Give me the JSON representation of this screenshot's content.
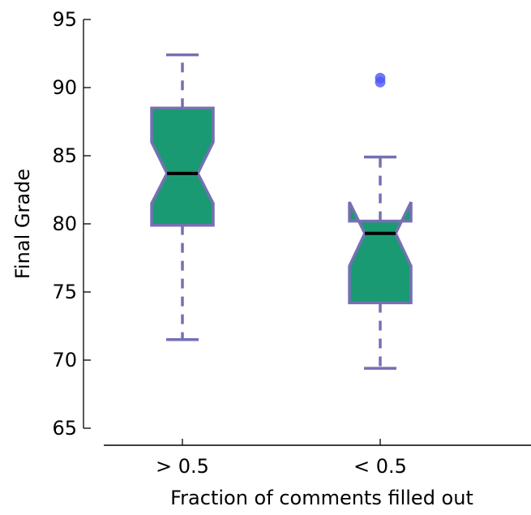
{
  "chart_data": {
    "type": "boxplot",
    "title": "",
    "xlabel": "Fraction of comments filled out",
    "ylabel": "Final Grade",
    "ylim": [
      65,
      95
    ],
    "yticks": [
      "65",
      "70",
      "75",
      "80",
      "85",
      "90",
      "95"
    ],
    "categories": [
      "> 0.5",
      "< 0.5"
    ],
    "boxes": [
      {
        "category": "> 0.5",
        "whisker_low": 71.5,
        "q1": 79.9,
        "notch_low": 81.5,
        "median": 83.7,
        "notch_high": 86.0,
        "q3": 88.5,
        "whisker_high": 92.4,
        "outliers": []
      },
      {
        "category": "< 0.5",
        "whisker_low": 69.4,
        "q1": 74.2,
        "notch_low": 76.9,
        "median": 79.3,
        "notch_high": 81.6,
        "q3": 80.2,
        "whisker_high": 84.9,
        "outliers": [
          90.4,
          90.7
        ]
      }
    ],
    "grid": false,
    "colors": {
      "box_fill": "#1a9a73",
      "box_edge": "#7570b3",
      "whisker": "#7570b3",
      "median": "#000000",
      "outlier": "#4b57f5"
    }
  }
}
